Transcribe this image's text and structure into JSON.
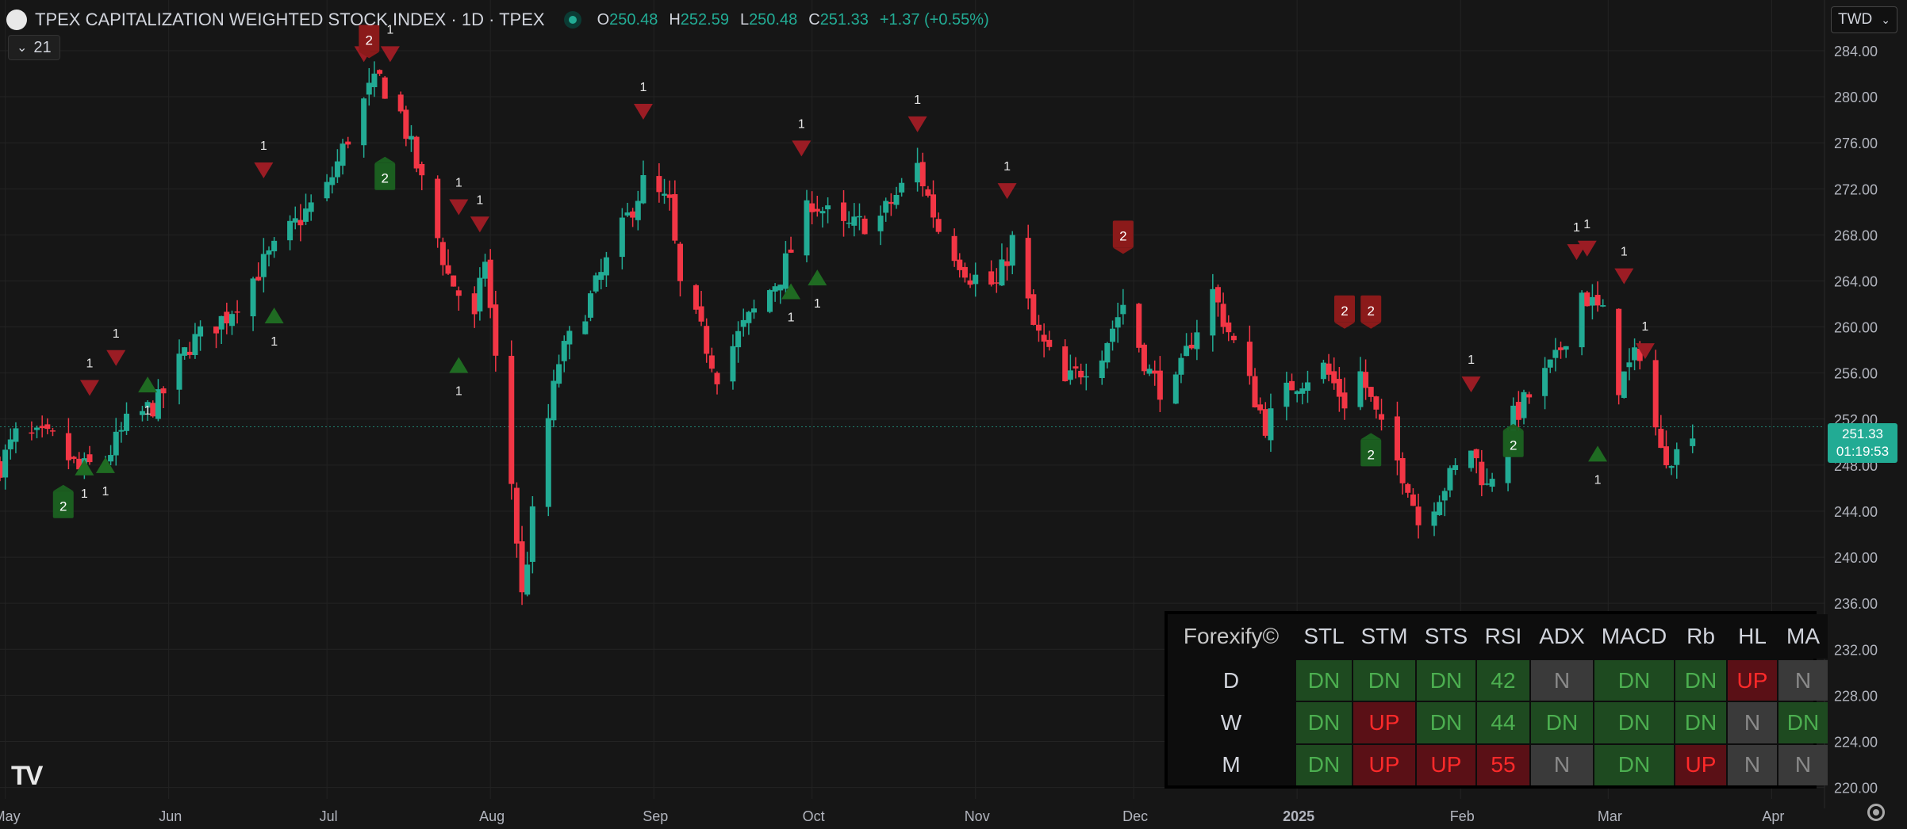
{
  "header": {
    "symbol_title": "TPEX CAPITALIZATION WEIGHTED STOCK INDEX · 1D · TPEX",
    "ohlc": [
      {
        "k": "O",
        "v": "250.48"
      },
      {
        "k": "H",
        "v": "252.59"
      },
      {
        "k": "L",
        "v": "250.48"
      },
      {
        "k": "C",
        "v": "251.33"
      }
    ],
    "change": "+1.37 (+0.55%)",
    "indicator_count": "21",
    "currency": "TWD"
  },
  "last_price": {
    "price": "251.33",
    "countdown": "01:19:53"
  },
  "colors": {
    "up": "#22ab94",
    "down": "#f23645",
    "signal_up": "#1b5e20",
    "signal_down": "#8b1a1a"
  },
  "chart_data": {
    "type": "candlestick",
    "y_axis": {
      "min": 218.8,
      "max": 286.2,
      "ticks": [
        284,
        280,
        276,
        272,
        268,
        264,
        260,
        256,
        252,
        248,
        244,
        240,
        236,
        232,
        228,
        224,
        220
      ],
      "tick_labels": [
        "284.00",
        "280.00",
        "276.00",
        "272.00",
        "268.00",
        "264.00",
        "260.00",
        "256.00",
        "252.00",
        "248.00",
        "244.00",
        "240.00",
        "236.00",
        "232.00",
        "228.00",
        "224.00",
        "220.00"
      ]
    },
    "x_axis": {
      "labels": [
        {
          "label": "May",
          "date": "2024-05-01"
        },
        {
          "label": "Jun",
          "date": "2024-06-01"
        },
        {
          "label": "Jul",
          "date": "2024-07-01"
        },
        {
          "label": "Aug",
          "date": "2024-08-01"
        },
        {
          "label": "Sep",
          "date": "2024-09-01"
        },
        {
          "label": "Oct",
          "date": "2024-10-01"
        },
        {
          "label": "Nov",
          "date": "2024-11-01"
        },
        {
          "label": "Dec",
          "date": "2024-12-01"
        },
        {
          "label": "2025",
          "date": "2025-01-01",
          "bold": true
        },
        {
          "label": "Feb",
          "date": "2025-02-01"
        },
        {
          "label": "Mar",
          "date": "2025-03-01"
        },
        {
          "label": "Apr",
          "date": "2025-04-01"
        }
      ]
    },
    "last_close": 251.33,
    "close_path": [
      [
        "2024-04-30",
        248.0
      ],
      [
        "2024-05-03",
        250.5
      ],
      [
        "2024-05-10",
        250.2
      ],
      [
        "2024-05-15",
        247.5
      ],
      [
        "2024-05-20",
        248.5
      ],
      [
        "2024-05-24",
        251.5
      ],
      [
        "2024-05-30",
        253.5
      ],
      [
        "2024-06-05",
        258.5
      ],
      [
        "2024-06-12",
        261.0
      ],
      [
        "2024-06-19",
        265.5
      ],
      [
        "2024-06-26",
        269.5
      ],
      [
        "2024-07-01",
        272.0
      ],
      [
        "2024-07-05",
        276.5
      ],
      [
        "2024-07-09",
        280.5
      ],
      [
        "2024-07-11",
        281.5
      ],
      [
        "2024-07-15",
        278.5
      ],
      [
        "2024-07-19",
        272.5
      ],
      [
        "2024-07-24",
        264.5
      ],
      [
        "2024-07-29",
        260.5
      ],
      [
        "2024-07-31",
        266.0
      ],
      [
        "2024-08-02",
        257.0
      ],
      [
        "2024-08-05",
        246.5
      ],
      [
        "2024-08-07",
        236.5
      ],
      [
        "2024-08-10",
        247.0
      ],
      [
        "2024-08-14",
        257.0
      ],
      [
        "2024-08-20",
        262.5
      ],
      [
        "2024-08-26",
        268.5
      ],
      [
        "2024-08-30",
        272.5
      ],
      [
        "2024-09-04",
        270.5
      ],
      [
        "2024-09-06",
        263.5
      ],
      [
        "2024-09-10",
        259.5
      ],
      [
        "2024-09-13",
        256.0
      ],
      [
        "2024-09-18",
        260.0
      ],
      [
        "2024-09-25",
        264.5
      ],
      [
        "2024-10-01",
        271.0
      ],
      [
        "2024-10-07",
        268.5
      ],
      [
        "2024-10-14",
        269.5
      ],
      [
        "2024-10-21",
        274.0
      ],
      [
        "2024-10-25",
        268.5
      ],
      [
        "2024-10-31",
        264.5
      ],
      [
        "2024-11-05",
        263.5
      ],
      [
        "2024-11-08",
        267.5
      ],
      [
        "2024-11-12",
        260.0
      ],
      [
        "2024-11-18",
        255.0
      ],
      [
        "2024-11-25",
        258.0
      ],
      [
        "2024-11-29",
        262.0
      ],
      [
        "2024-12-04",
        256.0
      ],
      [
        "2024-12-08",
        253.5
      ],
      [
        "2024-12-12",
        259.0
      ],
      [
        "2024-12-16",
        263.0
      ],
      [
        "2024-12-20",
        258.5
      ],
      [
        "2024-12-26",
        251.5
      ],
      [
        "2024-12-31",
        255.0
      ],
      [
        "2025-01-06",
        256.5
      ],
      [
        "2025-01-10",
        253.5
      ],
      [
        "2025-01-13",
        256.0
      ],
      [
        "2025-01-17",
        251.0
      ],
      [
        "2025-01-22",
        246.5
      ],
      [
        "2025-01-24",
        243.0
      ],
      [
        "2025-02-03",
        249.5
      ],
      [
        "2025-02-06",
        246.0
      ],
      [
        "2025-02-10",
        251.5
      ],
      [
        "2025-02-14",
        254.0
      ],
      [
        "2025-02-19",
        257.0
      ],
      [
        "2025-02-24",
        263.0
      ],
      [
        "2025-02-28",
        261.0
      ],
      [
        "2025-03-03",
        255.0
      ],
      [
        "2025-03-07",
        258.0
      ],
      [
        "2025-03-11",
        249.0
      ],
      [
        "2025-03-14",
        249.0
      ],
      [
        "2025-03-17",
        251.33
      ]
    ],
    "signals": [
      {
        "date": "2024-05-12",
        "dir": "up",
        "label": "2",
        "style": "badge",
        "price": 244.5
      },
      {
        "date": "2024-05-16",
        "dir": "up",
        "label": "1",
        "style": "arrow",
        "price": 247.8
      },
      {
        "date": "2024-05-20",
        "dir": "up",
        "label": "1",
        "style": "arrow",
        "price": 248.0
      },
      {
        "date": "2024-05-17",
        "dir": "down",
        "label": "1",
        "style": "arrow",
        "price": 254.7
      },
      {
        "date": "2024-05-22",
        "dir": "down",
        "label": "1",
        "style": "arrow",
        "price": 257.3
      },
      {
        "date": "2024-05-28",
        "dir": "up",
        "label": "1",
        "style": "arrow",
        "price": 255.0
      },
      {
        "date": "2024-06-19",
        "dir": "down",
        "label": "1",
        "style": "arrow",
        "price": 273.6
      },
      {
        "date": "2024-06-21",
        "dir": "up",
        "label": "1",
        "style": "arrow",
        "price": 261.0
      },
      {
        "date": "2024-07-08",
        "dir": "down",
        "label": "2",
        "style": "arrow",
        "price": 283.7
      },
      {
        "date": "2024-07-09",
        "dir": "down",
        "label": "2",
        "style": "badge",
        "price": 285.0
      },
      {
        "date": "2024-07-13",
        "dir": "down",
        "label": "1",
        "style": "arrow",
        "price": 283.7
      },
      {
        "date": "2024-07-12",
        "dir": "up",
        "label": "2",
        "style": "badge",
        "price": 273.0
      },
      {
        "date": "2024-07-26",
        "dir": "down",
        "label": "1",
        "style": "arrow",
        "price": 270.4
      },
      {
        "date": "2024-07-30",
        "dir": "down",
        "label": "1",
        "style": "arrow",
        "price": 268.9
      },
      {
        "date": "2024-07-26",
        "dir": "up",
        "label": "1",
        "style": "arrow",
        "price": 256.7
      },
      {
        "date": "2024-08-30",
        "dir": "down",
        "label": "1",
        "style": "arrow",
        "price": 278.7
      },
      {
        "date": "2024-09-27",
        "dir": "up",
        "label": "1",
        "style": "arrow",
        "price": 263.1
      },
      {
        "date": "2024-09-29",
        "dir": "down",
        "label": "1",
        "style": "arrow",
        "price": 275.5
      },
      {
        "date": "2024-10-02",
        "dir": "up",
        "label": "1",
        "style": "arrow",
        "price": 264.3
      },
      {
        "date": "2024-10-21",
        "dir": "down",
        "label": "1",
        "style": "arrow",
        "price": 277.6
      },
      {
        "date": "2024-11-07",
        "dir": "down",
        "label": "1",
        "style": "arrow",
        "price": 271.8
      },
      {
        "date": "2024-11-29",
        "dir": "down",
        "label": "2",
        "style": "badge",
        "price": 268.0
      },
      {
        "date": "2025-01-10",
        "dir": "down",
        "label": "2",
        "style": "badge",
        "price": 261.5
      },
      {
        "date": "2025-01-15",
        "dir": "down",
        "label": "2",
        "style": "badge",
        "price": 261.5
      },
      {
        "date": "2025-01-15",
        "dir": "up",
        "label": "2",
        "style": "badge",
        "price": 249.0
      },
      {
        "date": "2025-02-03",
        "dir": "down",
        "label": "1",
        "style": "arrow",
        "price": 255.0
      },
      {
        "date": "2025-02-11",
        "dir": "up",
        "label": "2",
        "style": "badge",
        "price": 249.8
      },
      {
        "date": "2025-02-23",
        "dir": "down",
        "label": "1",
        "style": "arrow",
        "price": 266.5
      },
      {
        "date": "2025-02-25",
        "dir": "down",
        "label": "1",
        "style": "arrow",
        "price": 266.8
      },
      {
        "date": "2025-02-27",
        "dir": "up",
        "label": "1",
        "style": "arrow",
        "price": 249.0
      },
      {
        "date": "2025-03-04",
        "dir": "down",
        "label": "1",
        "style": "arrow",
        "price": 264.4
      },
      {
        "date": "2025-03-08",
        "dir": "down",
        "label": "1",
        "style": "arrow",
        "price": 257.9
      }
    ]
  },
  "table": {
    "brand": "Forexify©",
    "columns": [
      "STL",
      "STM",
      "STS",
      "RSI",
      "ADX",
      "MACD",
      "Rb",
      "HL",
      "MA"
    ],
    "rows": [
      {
        "label": "D",
        "cells": [
          {
            "text": "DN",
            "tone": "g"
          },
          {
            "text": "DN",
            "tone": "g"
          },
          {
            "text": "DN",
            "tone": "g"
          },
          {
            "text": "42",
            "tone": "g"
          },
          {
            "text": "N",
            "tone": "n"
          },
          {
            "text": "DN",
            "tone": "g"
          },
          {
            "text": "DN",
            "tone": "g"
          },
          {
            "text": "UP",
            "tone": "r"
          },
          {
            "text": "N",
            "tone": "n"
          }
        ]
      },
      {
        "label": "W",
        "cells": [
          {
            "text": "DN",
            "tone": "g"
          },
          {
            "text": "UP",
            "tone": "r"
          },
          {
            "text": "DN",
            "tone": "g"
          },
          {
            "text": "44",
            "tone": "g"
          },
          {
            "text": "DN",
            "tone": "g"
          },
          {
            "text": "DN",
            "tone": "g"
          },
          {
            "text": "DN",
            "tone": "g"
          },
          {
            "text": "N",
            "tone": "n"
          },
          {
            "text": "DN",
            "tone": "g"
          }
        ]
      },
      {
        "label": "M",
        "cells": [
          {
            "text": "DN",
            "tone": "g"
          },
          {
            "text": "UP",
            "tone": "r"
          },
          {
            "text": "UP",
            "tone": "r"
          },
          {
            "text": "55",
            "tone": "r"
          },
          {
            "text": "N",
            "tone": "n"
          },
          {
            "text": "DN",
            "tone": "g"
          },
          {
            "text": "UP",
            "tone": "r"
          },
          {
            "text": "N",
            "tone": "n"
          },
          {
            "text": "N",
            "tone": "n"
          }
        ]
      }
    ]
  }
}
